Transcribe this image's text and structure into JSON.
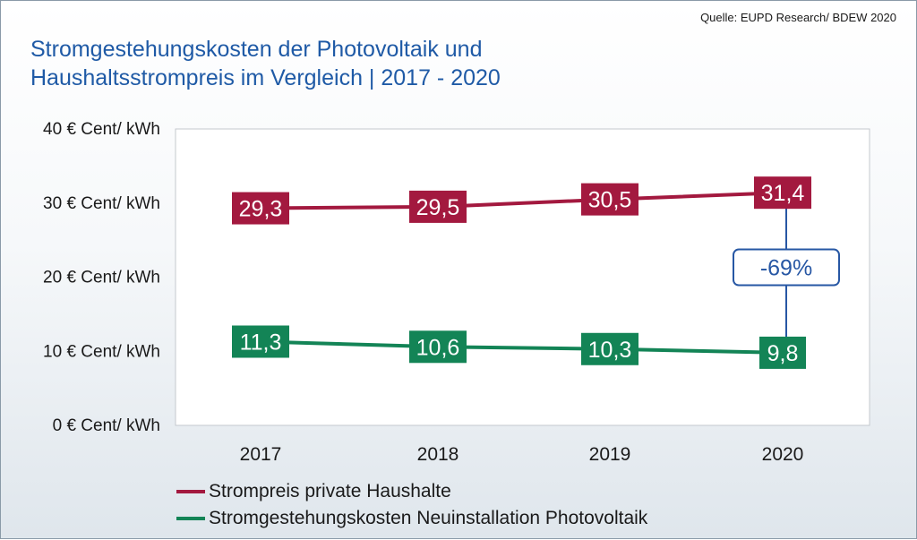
{
  "source": "Quelle: EUPD Research/ BDEW  2020",
  "title_lines": [
    "Stromgestehungskosten der Photovoltaik und",
    "Haushaltsstrompreis im Vergleich | 2017 - 2020"
  ],
  "chart_data": {
    "type": "line",
    "x": [
      "2017",
      "2018",
      "2019",
      "2020"
    ],
    "ylim": [
      0,
      40
    ],
    "yticks": [
      0,
      10,
      20,
      30,
      40
    ],
    "ytick_labels": [
      "0 € Cent/ kWh",
      "10 € Cent/ kWh",
      "20 € Cent/ kWh",
      "30 € Cent/ kWh",
      "40 € Cent/ kWh"
    ],
    "grid": false,
    "legend_position": "bottom",
    "series": [
      {
        "name": "Strompreis private Haushalte",
        "values": [
          29.3,
          29.5,
          30.5,
          31.4
        ],
        "labels": [
          "29,3",
          "29,5",
          "30,5",
          "31,4"
        ],
        "color": "#a3193f"
      },
      {
        "name": "Stromgestehungskosten Neuinstallation Photovoltaik",
        "values": [
          11.3,
          10.6,
          10.3,
          9.8
        ],
        "labels": [
          "11,3",
          "10,6",
          "10,3",
          "9,8"
        ],
        "color": "#138456"
      }
    ],
    "annotation": {
      "text": "-69%",
      "x": "2020",
      "from": 9.8,
      "to": 31.4,
      "color": "#2757a4"
    }
  }
}
